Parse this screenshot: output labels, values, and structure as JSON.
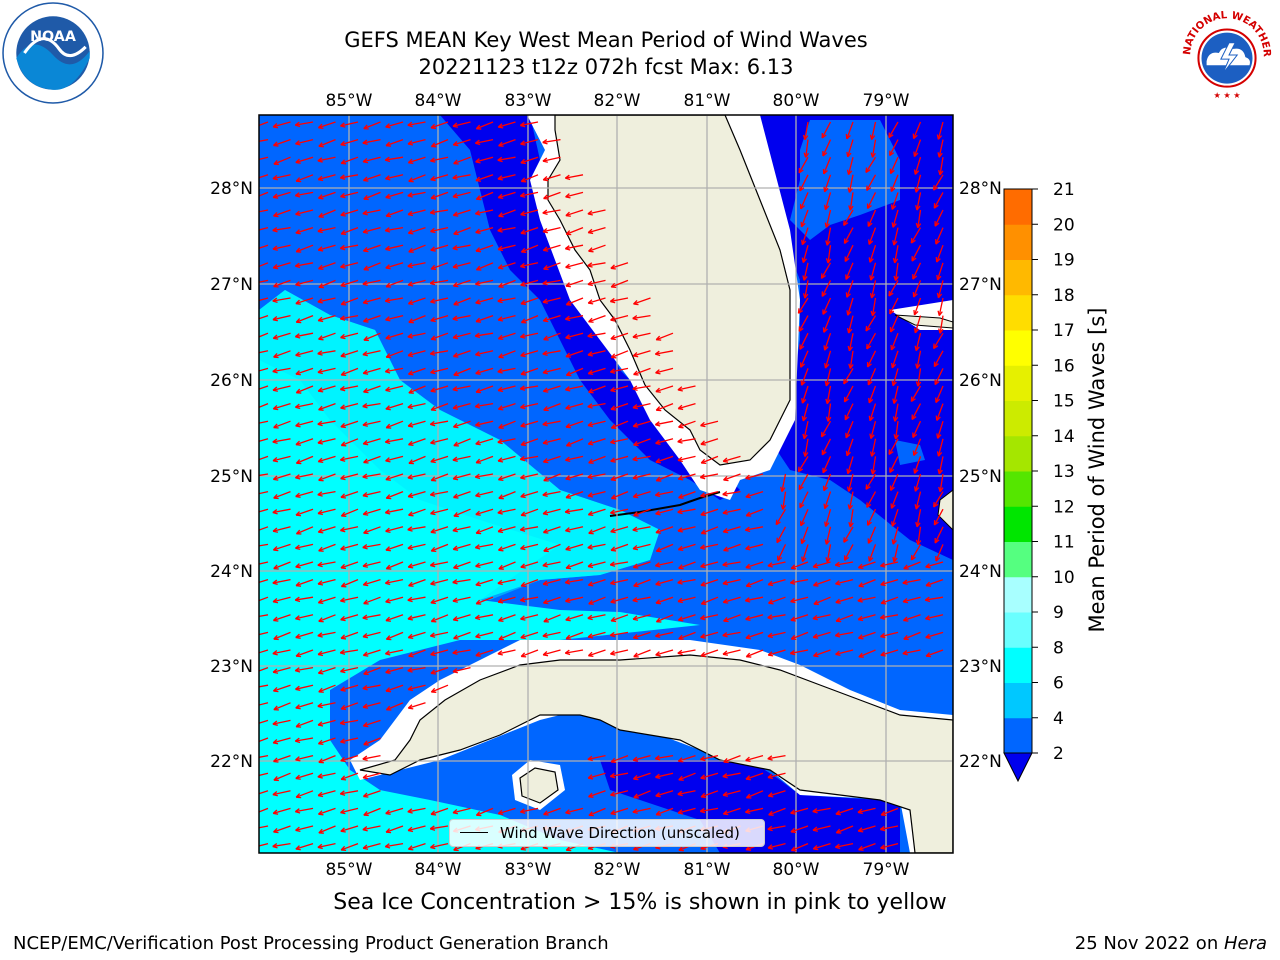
{
  "title": {
    "line1": "GEFS MEAN Key West Mean Period of Wind Waves",
    "line2": "20221123 t12z 072h fcst   Max: 6.13"
  },
  "map": {
    "lon_ticks": [
      "85°W",
      "84°W",
      "83°W",
      "82°W",
      "81°W",
      "80°W",
      "79°W"
    ],
    "lat_ticks": [
      "28°N",
      "27°N",
      "26°N",
      "25°N",
      "24°N",
      "23°N",
      "22°N"
    ],
    "lon_range": [
      -86.0,
      -78.25
    ],
    "lat_range": [
      21.0,
      28.75
    ],
    "vector_color": "#ff0000",
    "land_color": "#efefdd",
    "grid": true
  },
  "legend": {
    "label": "Wind Wave Direction (unscaled)"
  },
  "colorbar": {
    "label": "Mean Period of Wind Waves [s]",
    "ticks": [
      "2",
      "4",
      "6",
      "8",
      "9",
      "10",
      "11",
      "12",
      "13",
      "14",
      "15",
      "16",
      "17",
      "18",
      "19",
      "20",
      "21"
    ],
    "colors": [
      "#0066ff",
      "#00c8ff",
      "#00ffff",
      "#6affff",
      "#a8ffff",
      "#55ff80",
      "#00e600",
      "#55e600",
      "#a5e600",
      "#cceb00",
      "#e6f000",
      "#ffff00",
      "#ffdd00",
      "#ffb900",
      "#ff9000",
      "#ff6c00",
      "#ff3c00",
      "#ff0000"
    ],
    "under_color": "#0000ee",
    "extend": "min"
  },
  "chart_data": {
    "type": "heatmap",
    "title": "GEFS MEAN Key West Mean Period of Wind Waves",
    "subtitle": "20221123 t12z 072h fcst   Max: 6.13",
    "max": 6.13,
    "xlim": [
      -86.0,
      -78.25
    ],
    "ylim": [
      21.0,
      28.75
    ],
    "levels": [
      2,
      4,
      6,
      8,
      9,
      10,
      11,
      12,
      13,
      14,
      15,
      16,
      17,
      18,
      19,
      20,
      21
    ],
    "colorbar_label": "Mean Period of Wind Waves [s]"
  },
  "footer": {
    "note": "Sea Ice Concentration > 15% is shown in pink to yellow",
    "left": "NCEP/EMC/Verification Post Processing Product Generation Branch",
    "date": "25 Nov 2022 on ",
    "machine": "Hera"
  },
  "logos": {
    "noaa_text": "NOAA",
    "nws_text": "NATIONAL WEATHER SERVICE"
  }
}
